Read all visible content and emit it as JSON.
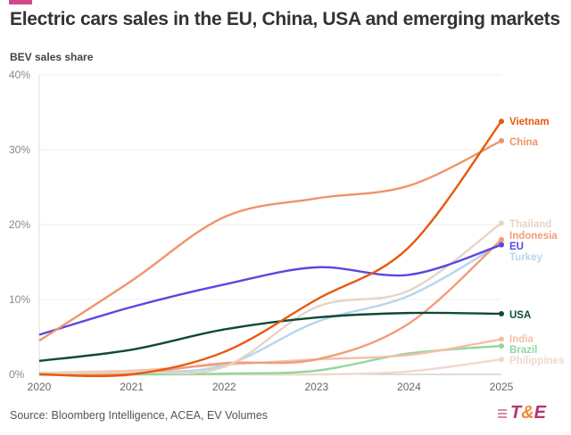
{
  "header": {
    "title": "Electric cars sales in the EU, China, USA and emerging markets",
    "subtitle": "BEV sales share"
  },
  "footer": {
    "source": "Source: Bloomberg Intelligence, ACEA, EV Volumes",
    "logo_text": "T&E"
  },
  "chart_data": {
    "type": "line",
    "title": "Electric cars sales in the EU, China, USA and emerging markets",
    "ylabel": "BEV sales share",
    "xlabel": "",
    "x": [
      2020,
      2021,
      2022,
      2023,
      2024,
      2025
    ],
    "x_tick_labels": [
      "2020",
      "2021",
      "2022",
      "2023",
      "2024",
      "2025"
    ],
    "ylim": [
      0,
      40
    ],
    "y_ticks": [
      0,
      10,
      20,
      30,
      40
    ],
    "y_tick_labels": [
      "0%",
      "10%",
      "20%",
      "30%",
      "40%"
    ],
    "grid": "horizontal",
    "legend": "end-of-line labels",
    "series": [
      {
        "name": "Philippines",
        "color": "#efd9cc",
        "values": [
          0,
          0,
          0,
          0,
          0.4,
          2.0
        ]
      },
      {
        "name": "Brazil",
        "color": "#8fd6a0",
        "values": [
          0,
          0,
          0.1,
          0.5,
          2.8,
          3.8
        ]
      },
      {
        "name": "India",
        "color": "#f5bfa6",
        "values": [
          0.2,
          0.5,
          1.3,
          2.0,
          2.6,
          4.7
        ]
      },
      {
        "name": "Turkey",
        "color": "#b5d6ef",
        "values": [
          0.1,
          0.3,
          1.2,
          7.0,
          10.5,
          17.5
        ]
      },
      {
        "name": "Indonesia",
        "color": "#f29c7a",
        "values": [
          0,
          0.1,
          1.5,
          2.0,
          6.8,
          18.0
        ]
      },
      {
        "name": "Thailand",
        "color": "#e6d4c3",
        "values": [
          0.2,
          0.3,
          1.0,
          9.0,
          11.2,
          20.2
        ]
      },
      {
        "name": "USA",
        "color": "#0e4a33",
        "values": [
          1.8,
          3.3,
          6.0,
          7.6,
          8.2,
          8.1
        ]
      },
      {
        "name": "EU",
        "color": "#5a48e0",
        "values": [
          5.3,
          9.0,
          12.0,
          14.3,
          13.3,
          17.3
        ]
      },
      {
        "name": "China",
        "color": "#f0936a",
        "values": [
          4.5,
          12.5,
          21.0,
          23.5,
          25.2,
          31.2
        ]
      },
      {
        "name": "Vietnam",
        "color": "#e8580c",
        "values": [
          0,
          0,
          3.0,
          10.0,
          17.0,
          33.8
        ]
      }
    ]
  }
}
